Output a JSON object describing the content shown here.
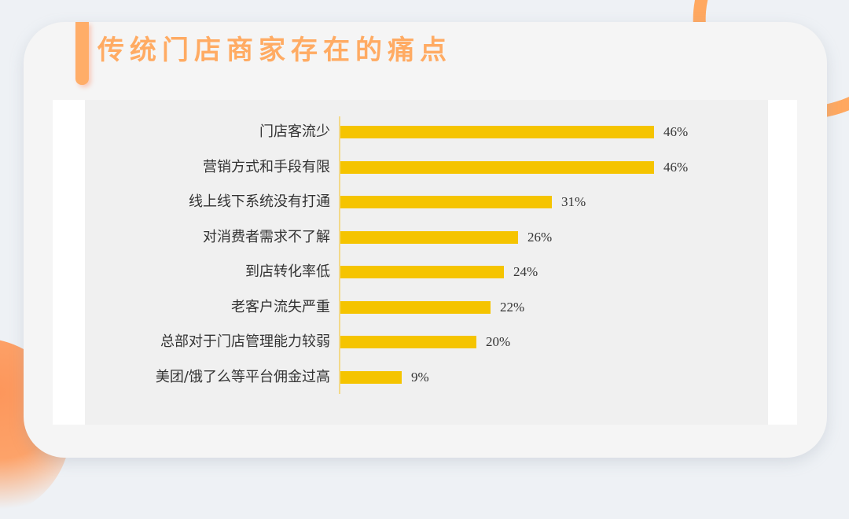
{
  "title": "传统门店商家存在的痛点",
  "colors": {
    "bar": "#f5c400",
    "title": "#ffab63",
    "accent": "#ffad68",
    "background": "#eef1f5",
    "card": "#f5f5f5",
    "panel": "#f0f0f0"
  },
  "chart_data": {
    "type": "bar",
    "orientation": "horizontal",
    "title": "传统门店商家存在的痛点",
    "xlabel": "",
    "ylabel": "",
    "grid": false,
    "legend": null,
    "value_format": "percent",
    "categories": [
      "门店客流少",
      "营销方式和手段有限",
      "线上线下系统没有打通",
      "对消费者需求不了解",
      "到店转化率低",
      "老客户流失严重",
      "总部对于门店管理能力较弱",
      "美团/饿了么等平台佣金过高"
    ],
    "values": [
      46,
      46,
      31,
      26,
      24,
      22,
      20,
      9
    ],
    "labels": [
      "46%",
      "46%",
      "31%",
      "26%",
      "24%",
      "22%",
      "20%",
      "9%"
    ],
    "xlim": [
      0,
      50
    ]
  }
}
